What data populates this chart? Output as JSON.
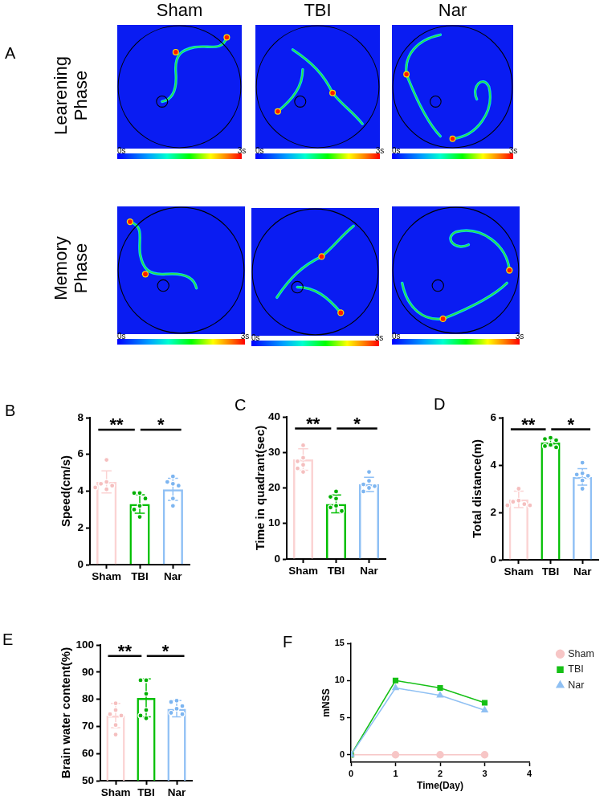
{
  "chart_data": [
    {
      "type": "other",
      "title": "A",
      "categories": [
        "Sham",
        "TBI",
        "Nar"
      ],
      "y_categories": [
        "Learening Phase",
        "Memory Phase"
      ],
      "annotations": [
        "0s",
        "3s",
        "0s",
        "3s",
        "0s",
        "3s",
        "0s",
        "3s",
        "0s",
        "3s",
        "0s",
        "3s"
      ]
    },
    {
      "type": "bar",
      "title": "B",
      "ylabel": "Speed(cm/s)",
      "categories": [
        "Sham",
        "TBI",
        "Nar"
      ],
      "ylim": [
        0,
        8
      ],
      "yticks": [
        0,
        2,
        4,
        6,
        8
      ],
      "annotations": [
        "**",
        "*"
      ],
      "series": [
        {
          "type": "bar",
          "colors": [
            "#fbd3d3",
            "#00bf00",
            "#8fc0f5"
          ],
          "values": [
            4.5,
            3.3,
            4.1
          ],
          "errors": [
            0.6,
            0.5,
            0.6
          ]
        },
        {
          "type": "scatter",
          "marker": "circle",
          "x": [
            "Sham",
            "Sham",
            "Sham",
            "Sham",
            "Sham",
            "Sham",
            "TBI",
            "TBI",
            "TBI",
            "TBI",
            "TBI",
            "TBI",
            "Nar",
            "Nar",
            "Nar",
            "Nar",
            "Nar",
            "Nar"
          ],
          "values": [
            5.7,
            4.5,
            4.4,
            4.3,
            4.2,
            4.1,
            3.9,
            3.9,
            3.6,
            3.2,
            3.0,
            2.6,
            4.8,
            4.5,
            4.4,
            4.3,
            3.6,
            3.2
          ],
          "colors": [
            "#f5bfbf",
            "#f5bfbf",
            "#f5bfbf",
            "#f5bfbf",
            "#f5bfbf",
            "#f5bfbf",
            "#00b000",
            "#00b000",
            "#00b000",
            "#00b000",
            "#00b000",
            "#00b000",
            "#7db5f0",
            "#7db5f0",
            "#7db5f0",
            "#7db5f0",
            "#7db5f0",
            "#7db5f0"
          ]
        }
      ]
    },
    {
      "type": "bar",
      "title": "C",
      "ylabel": "Time in quadrant(sec)",
      "categories": [
        "Sham",
        "TBI",
        "Nar"
      ],
      "ylim": [
        0,
        40
      ],
      "yticks": [
        0,
        10,
        20,
        30,
        40
      ],
      "annotations": [
        "**",
        "*"
      ],
      "series": [
        {
          "type": "bar",
          "colors": [
            "#fbd3d3",
            "#00bf00",
            "#8fc0f5"
          ],
          "values": [
            28,
            15.5,
            21
          ],
          "errors": [
            3,
            2.5,
            2
          ]
        },
        {
          "type": "scatter",
          "marker": "circle",
          "x": [
            "Sham",
            "Sham",
            "Sham",
            "Sham",
            "Sham",
            "Sham",
            "TBI",
            "TBI",
            "TBI",
            "TBI",
            "TBI",
            "TBI",
            "Nar",
            "Nar",
            "Nar",
            "Nar",
            "Nar",
            "Nar"
          ],
          "values": [
            32,
            28.5,
            27.5,
            26.5,
            25.5,
            24.5,
            19,
            17.5,
            17,
            15,
            14.5,
            13.5,
            24.5,
            22,
            21,
            20.5,
            20,
            19
          ],
          "colors": [
            "#f5bfbf",
            "#f5bfbf",
            "#f5bfbf",
            "#f5bfbf",
            "#f5bfbf",
            "#f5bfbf",
            "#00b000",
            "#00b000",
            "#00b000",
            "#00b000",
            "#00b000",
            "#00b000",
            "#7db5f0",
            "#7db5f0",
            "#7db5f0",
            "#7db5f0",
            "#7db5f0",
            "#7db5f0"
          ]
        }
      ]
    },
    {
      "type": "bar",
      "title": "D",
      "ylabel": "Total distance(m)",
      "categories": [
        "Sham",
        "TBI",
        "Nar"
      ],
      "ylim": [
        0,
        6
      ],
      "yticks": [
        0,
        2,
        4,
        6
      ],
      "annotations": [
        "**",
        "*"
      ],
      "series": [
        {
          "type": "bar",
          "colors": [
            "#fbd3d3",
            "#00bf00",
            "#8fc0f5"
          ],
          "values": [
            2.55,
            4.95,
            3.5
          ],
          "errors": [
            0.35,
            0.15,
            0.35
          ]
        },
        {
          "type": "scatter",
          "marker": "circle",
          "x": [
            "Sham",
            "Sham",
            "Sham",
            "Sham",
            "Sham",
            "Sham",
            "TBI",
            "TBI",
            "TBI",
            "TBI",
            "TBI",
            "TBI",
            "Nar",
            "Nar",
            "Nar",
            "Nar",
            "Nar",
            "Nar"
          ],
          "values": [
            3.0,
            2.5,
            2.45,
            2.35,
            2.3,
            2.3,
            5.15,
            5.1,
            5.05,
            4.85,
            4.8,
            4.75,
            4.1,
            3.65,
            3.6,
            3.55,
            3.35,
            3.0
          ],
          "colors": [
            "#f5bfbf",
            "#f5bfbf",
            "#f5bfbf",
            "#f5bfbf",
            "#f5bfbf",
            "#f5bfbf",
            "#00b000",
            "#00b000",
            "#00b000",
            "#00b000",
            "#00b000",
            "#00b000",
            "#7db5f0",
            "#7db5f0",
            "#7db5f0",
            "#7db5f0",
            "#7db5f0",
            "#7db5f0"
          ]
        }
      ]
    },
    {
      "type": "bar",
      "title": "E",
      "ylabel": "Brain water content(%)",
      "categories": [
        "Sham",
        "TBI",
        "Nar"
      ],
      "ylim": [
        50,
        100
      ],
      "yticks": [
        50,
        60,
        70,
        80,
        90,
        100
      ],
      "annotations": [
        "**",
        "*"
      ],
      "series": [
        {
          "type": "bar",
          "colors": [
            "#fbd3d3",
            "#00bf00",
            "#8fc0f5"
          ],
          "values": [
            74,
            80.5,
            76.5
          ],
          "errors": [
            4.5,
            7,
            3
          ]
        },
        {
          "type": "scatter",
          "marker": "circle",
          "x": [
            "Sham",
            "Sham",
            "Sham",
            "Sham",
            "Sham",
            "Sham",
            "TBI",
            "TBI",
            "TBI",
            "TBI",
            "TBI",
            "TBI",
            "Nar",
            "Nar",
            "Nar",
            "Nar",
            "Nar",
            "Nar"
          ],
          "values": [
            78.5,
            76,
            74.5,
            74,
            70.5,
            67,
            87,
            87,
            82,
            76,
            74,
            73,
            79.5,
            79,
            77.5,
            76.5,
            75,
            74.5
          ],
          "colors": [
            "#f5bfbf",
            "#f5bfbf",
            "#f5bfbf",
            "#f5bfbf",
            "#f5bfbf",
            "#f5bfbf",
            "#00b000",
            "#00b000",
            "#00b000",
            "#00b000",
            "#00b000",
            "#00b000",
            "#7db5f0",
            "#7db5f0",
            "#7db5f0",
            "#7db5f0",
            "#7db5f0",
            "#7db5f0"
          ]
        }
      ]
    },
    {
      "type": "line",
      "title": "F",
      "xlabel": "Time(Day)",
      "ylabel": "mNSS",
      "x": [
        0,
        1,
        2,
        3
      ],
      "xlim": [
        0,
        4
      ],
      "xticks": [
        0,
        1,
        2,
        3,
        4
      ],
      "ylim": [
        -1,
        15
      ],
      "yticks": [
        0,
        5,
        10,
        15
      ],
      "legend": "top right",
      "series": [
        {
          "name": "Sham",
          "color": "#f7c6c6",
          "marker": "circle",
          "values": [
            0,
            0,
            0,
            0
          ]
        },
        {
          "name": "TBI",
          "color": "#16c016",
          "marker": "square",
          "values": [
            0,
            10,
            9,
            7
          ]
        },
        {
          "name": "Nar",
          "color": "#8fc0f3",
          "marker": "triangle",
          "values": [
            0,
            9,
            8,
            6
          ]
        }
      ]
    }
  ]
}
